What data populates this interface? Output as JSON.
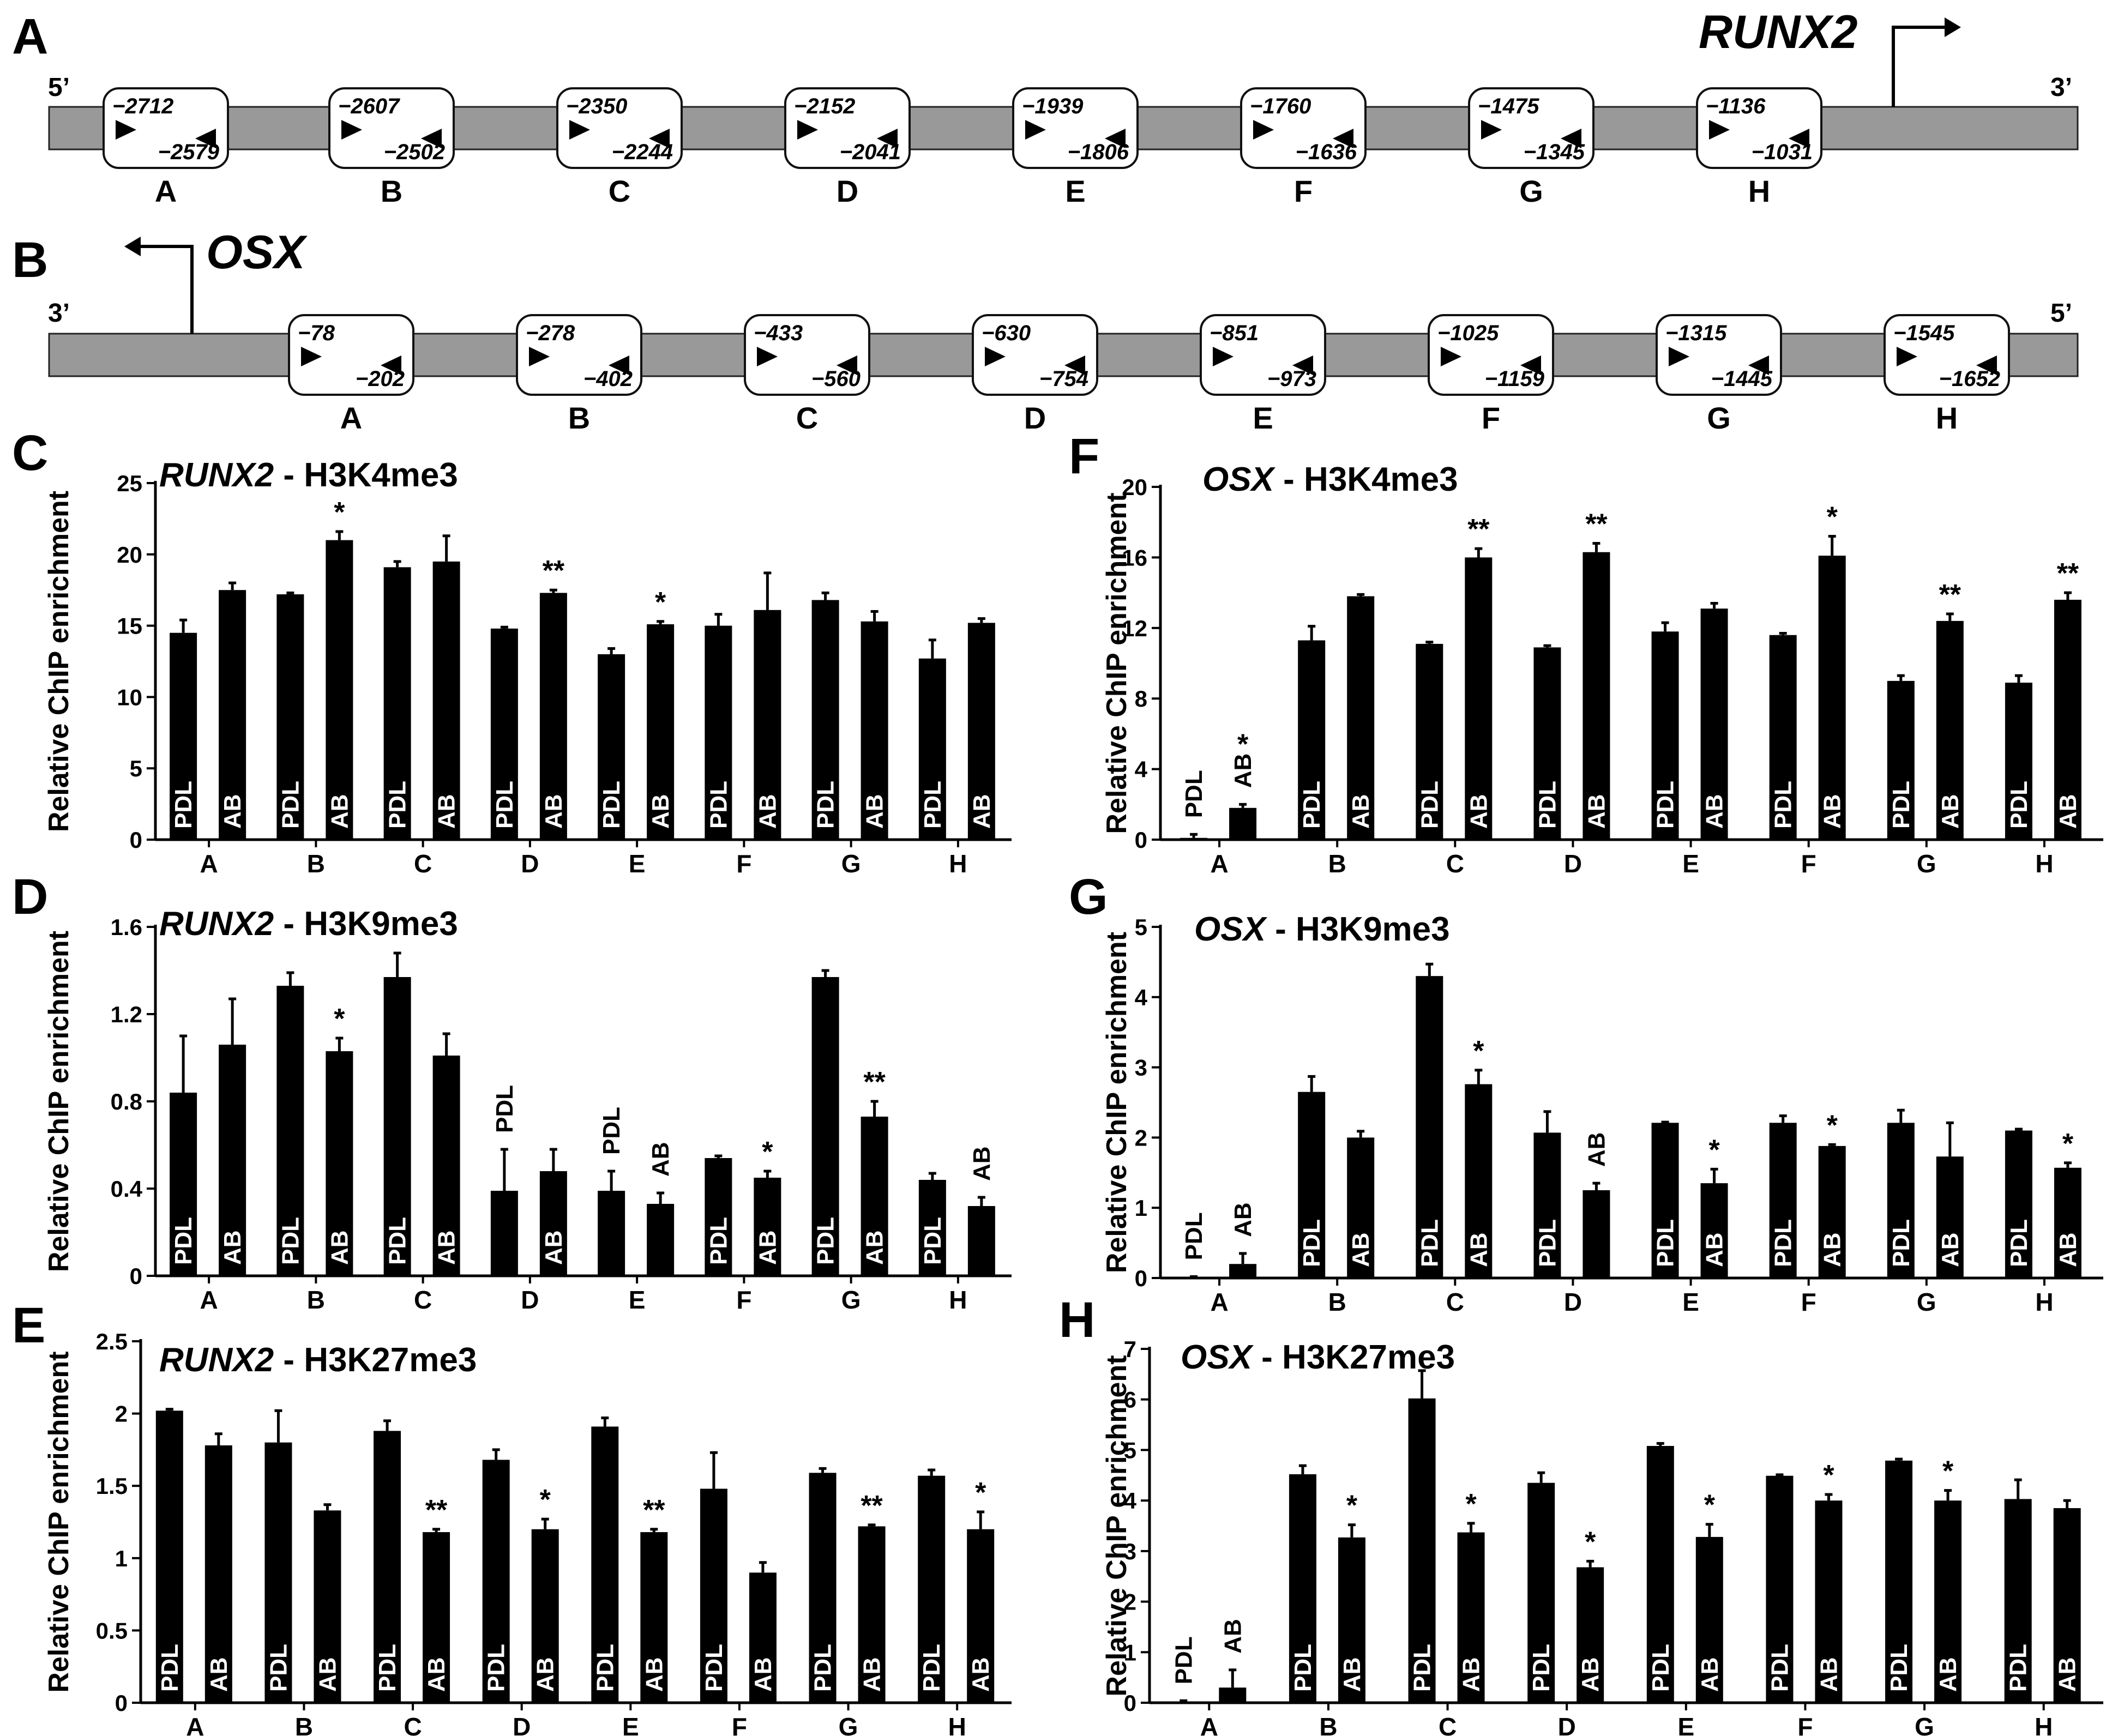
{
  "labels": {
    "five_prime": "5’",
    "three_prime": "3’"
  },
  "schematics": [
    {
      "panel_letter": "A",
      "gene": "RUNX2",
      "left_end": "5’",
      "right_end": "3’",
      "primers": [
        {
          "region": "A",
          "forward": "−2712",
          "reverse": "−2579"
        },
        {
          "region": "B",
          "forward": "−2607",
          "reverse": "−2502"
        },
        {
          "region": "C",
          "forward": "−2350",
          "reverse": "−2244"
        },
        {
          "region": "D",
          "forward": "−2152",
          "reverse": "−2041"
        },
        {
          "region": "E",
          "forward": "−1939",
          "reverse": "−1806"
        },
        {
          "region": "F",
          "forward": "−1760",
          "reverse": "−1636"
        },
        {
          "region": "G",
          "forward": "−1475",
          "reverse": "−1345"
        },
        {
          "region": "H",
          "forward": "−1136",
          "reverse": "−1031"
        }
      ]
    },
    {
      "panel_letter": "B",
      "gene": "OSX",
      "left_end": "3’",
      "right_end": "5’",
      "primers": [
        {
          "region": "A",
          "forward": "−78",
          "reverse": "−202"
        },
        {
          "region": "B",
          "forward": "−278",
          "reverse": "−402"
        },
        {
          "region": "C",
          "forward": "−433",
          "reverse": "−560"
        },
        {
          "region": "D",
          "forward": "−630",
          "reverse": "−754"
        },
        {
          "region": "E",
          "forward": "−851",
          "reverse": "−973"
        },
        {
          "region": "F",
          "forward": "−1025",
          "reverse": "−1159"
        },
        {
          "region": "G",
          "forward": "−1315",
          "reverse": "−1445"
        },
        {
          "region": "H",
          "forward": "−1545",
          "reverse": "−1652"
        }
      ]
    }
  ],
  "chart_data": [
    {
      "panel_letter": "C",
      "type": "bar",
      "gene": "RUNX2",
      "mark": "H3K4me3",
      "ylabel": "Relative ChIP enrichment",
      "categories": [
        "A",
        "B",
        "C",
        "D",
        "E",
        "F",
        "G",
        "H"
      ],
      "ylim": [
        0,
        25
      ],
      "yticks": [
        0,
        5,
        10,
        15,
        20,
        25
      ],
      "ytick_labels": [
        "0",
        "5",
        "10",
        "15",
        "20",
        "25"
      ],
      "series": [
        {
          "name": "PDL",
          "values": [
            14.5,
            17.2,
            19.1,
            14.8,
            13.0,
            15.0,
            16.8,
            12.7
          ],
          "errors": [
            0.9,
            0.1,
            0.4,
            0.1,
            0.4,
            0.8,
            0.5,
            1.3
          ],
          "sig": [
            "",
            "",
            "",
            "",
            "",
            "",
            "",
            ""
          ]
        },
        {
          "name": "AB",
          "values": [
            17.5,
            21.0,
            19.5,
            17.3,
            15.1,
            16.1,
            15.3,
            15.2
          ],
          "errors": [
            0.5,
            0.6,
            1.8,
            0.2,
            0.2,
            2.6,
            0.7,
            0.3
          ],
          "sig": [
            "",
            "*",
            "",
            "**",
            "*",
            "",
            "",
            ""
          ]
        }
      ]
    },
    {
      "panel_letter": "D",
      "type": "bar",
      "gene": "RUNX2",
      "mark": "H3K9me3",
      "ylabel": "Relative ChIP enrichment",
      "categories": [
        "A",
        "B",
        "C",
        "D",
        "E",
        "F",
        "G",
        "H"
      ],
      "ylim": [
        0,
        1.6
      ],
      "yticks": [
        0,
        0.4,
        0.8,
        1.2,
        1.6
      ],
      "ytick_labels": [
        "0",
        "0.4",
        "0.8",
        "1.2",
        "1.6"
      ],
      "series": [
        {
          "name": "PDL",
          "values": [
            0.84,
            1.33,
            1.37,
            0.39,
            0.39,
            0.54,
            1.37,
            0.44
          ],
          "errors": [
            0.26,
            0.06,
            0.11,
            0.19,
            0.09,
            0.01,
            0.03,
            0.03
          ],
          "sig": [
            "",
            "",
            "",
            "",
            "",
            "",
            "",
            ""
          ]
        },
        {
          "name": "AB",
          "values": [
            1.06,
            1.03,
            1.01,
            0.48,
            0.33,
            0.45,
            0.73,
            0.32
          ],
          "errors": [
            0.21,
            0.06,
            0.1,
            0.1,
            0.05,
            0.03,
            0.07,
            0.04
          ],
          "sig": [
            "",
            "*",
            "",
            "",
            "",
            "*",
            "**",
            ""
          ]
        }
      ]
    },
    {
      "panel_letter": "E",
      "type": "bar",
      "gene": "RUNX2",
      "mark": "H3K27me3",
      "ylabel": "Relative ChIP enrichment",
      "categories": [
        "A",
        "B",
        "C",
        "D",
        "E",
        "F",
        "G",
        "H"
      ],
      "ylim": [
        0,
        2.5
      ],
      "yticks": [
        0,
        0.5,
        1,
        1.5,
        2,
        2.5
      ],
      "ytick_labels": [
        "0",
        "0.5",
        "1",
        "1.5",
        "2",
        "2.5"
      ],
      "series": [
        {
          "name": "PDL",
          "values": [
            2.02,
            1.8,
            1.88,
            1.68,
            1.91,
            1.48,
            1.59,
            1.57
          ],
          "errors": [
            0.01,
            0.22,
            0.07,
            0.07,
            0.06,
            0.25,
            0.03,
            0.04
          ],
          "sig": [
            "",
            "",
            "",
            "",
            "",
            "",
            "",
            ""
          ]
        },
        {
          "name": "AB",
          "values": [
            1.78,
            1.33,
            1.18,
            1.2,
            1.18,
            0.9,
            1.22,
            1.2
          ],
          "errors": [
            0.08,
            0.04,
            0.02,
            0.07,
            0.02,
            0.07,
            0.01,
            0.12
          ],
          "sig": [
            "",
            "",
            "**",
            "*",
            "**",
            "",
            "**",
            "*"
          ]
        }
      ]
    },
    {
      "panel_letter": "F",
      "type": "bar",
      "gene": "OSX",
      "mark": "H3K4me3",
      "ylabel": "Relative ChIP enrichment",
      "categories": [
        "A",
        "B",
        "C",
        "D",
        "E",
        "F",
        "G",
        "H"
      ],
      "ylim": [
        0,
        20
      ],
      "yticks": [
        0,
        4,
        8,
        12,
        16,
        20
      ],
      "ytick_labels": [
        "0",
        "4",
        "8",
        "12",
        "16",
        "20"
      ],
      "series": [
        {
          "name": "PDL",
          "values": [
            0.1,
            11.3,
            11.1,
            10.9,
            11.8,
            11.6,
            9.0,
            8.9
          ],
          "errors": [
            0.2,
            0.8,
            0.1,
            0.1,
            0.5,
            0.1,
            0.3,
            0.4
          ],
          "sig": [
            "",
            "",
            "",
            "",
            "",
            "",
            "",
            ""
          ]
        },
        {
          "name": "AB",
          "values": [
            1.8,
            13.8,
            16.0,
            16.3,
            13.1,
            16.1,
            12.4,
            13.6
          ],
          "errors": [
            0.2,
            0.1,
            0.5,
            0.5,
            0.3,
            1.1,
            0.4,
            0.4
          ],
          "sig": [
            "*",
            "",
            "**",
            "**",
            "",
            "*",
            "**",
            "**"
          ]
        }
      ]
    },
    {
      "panel_letter": "G",
      "type": "bar",
      "gene": "OSX",
      "mark": "H3K9me3",
      "ylabel": "Relative ChIP enrichment",
      "categories": [
        "A",
        "B",
        "C",
        "D",
        "E",
        "F",
        "G",
        "H"
      ],
      "ylim": [
        0,
        5
      ],
      "yticks": [
        0,
        1,
        2,
        3,
        4,
        5
      ],
      "ytick_labels": [
        "0",
        "1",
        "2",
        "3",
        "4",
        "5"
      ],
      "series": [
        {
          "name": "PDL",
          "values": [
            0.01,
            2.65,
            4.3,
            2.07,
            2.21,
            2.21,
            2.21,
            2.1
          ],
          "errors": [
            0.01,
            0.22,
            0.17,
            0.3,
            0.01,
            0.1,
            0.18,
            0.02
          ],
          "sig": [
            "",
            "",
            "",
            "",
            "",
            "",
            "",
            ""
          ]
        },
        {
          "name": "AB",
          "values": [
            0.2,
            2.0,
            2.76,
            1.25,
            1.35,
            1.88,
            1.73,
            1.57
          ],
          "errors": [
            0.15,
            0.09,
            0.2,
            0.1,
            0.2,
            0.02,
            0.48,
            0.07
          ],
          "sig": [
            "",
            "",
            "*",
            "",
            "*",
            "*",
            "",
            "*"
          ]
        }
      ]
    },
    {
      "panel_letter": "H",
      "type": "bar",
      "gene": "OSX",
      "mark": "H3K27me3",
      "ylabel": "Relative ChIP enrichment",
      "categories": [
        "A",
        "B",
        "C",
        "D",
        "E",
        "F",
        "G",
        "H"
      ],
      "ylim": [
        0,
        7
      ],
      "yticks": [
        0,
        1,
        2,
        3,
        4,
        5,
        6,
        7
      ],
      "ytick_labels": [
        "0",
        "1",
        "2",
        "3",
        "4",
        "5",
        "6",
        "7"
      ],
      "series": [
        {
          "name": "PDL",
          "values": [
            0.02,
            4.52,
            6.02,
            4.35,
            5.08,
            4.49,
            4.79,
            4.03
          ],
          "errors": [
            0.02,
            0.17,
            0.55,
            0.2,
            0.05,
            0.02,
            0.03,
            0.38
          ],
          "sig": [
            "",
            "",
            "",
            "",
            "",
            "",
            "",
            ""
          ]
        },
        {
          "name": "AB",
          "values": [
            0.3,
            3.27,
            3.37,
            2.68,
            3.28,
            4.0,
            4.0,
            3.85
          ],
          "errors": [
            0.35,
            0.25,
            0.18,
            0.12,
            0.25,
            0.12,
            0.2,
            0.15
          ],
          "sig": [
            "",
            "*",
            "*",
            "*",
            "*",
            "*",
            "*",
            ""
          ]
        }
      ]
    }
  ]
}
